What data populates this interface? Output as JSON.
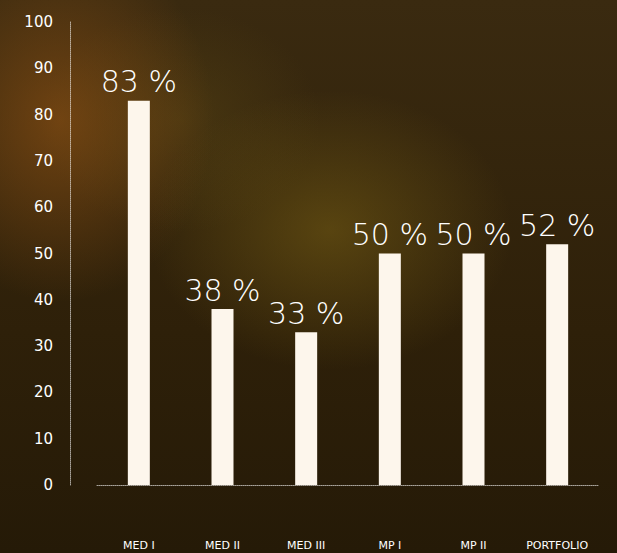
{
  "chart_data": {
    "type": "bar",
    "categories": [
      "MED I",
      "MED II",
      "MED III",
      "MP I",
      "MP II",
      "PORTFOLIO"
    ],
    "values": [
      83,
      38,
      33,
      50,
      50,
      52
    ],
    "value_labels": [
      "83 %",
      "38 %",
      "33 %",
      "50 %",
      "50 %",
      "52 %"
    ],
    "color": "#fdf6ec",
    "ylim": [
      0,
      100
    ],
    "yticks": [
      0,
      10,
      20,
      30,
      40,
      50,
      60,
      70,
      80,
      90,
      100
    ],
    "grid": false,
    "data_labels": true
  }
}
